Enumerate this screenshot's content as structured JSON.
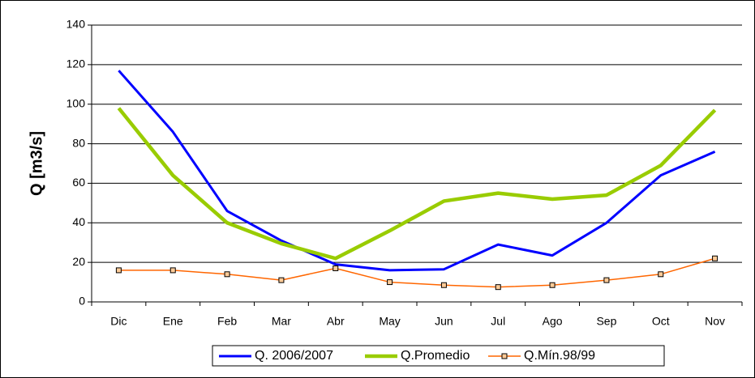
{
  "chart_data": {
    "type": "line",
    "y_label": "Q [m3/s]",
    "categories": [
      "Dic",
      "Ene",
      "Feb",
      "Mar",
      "Abr",
      "May",
      "Jun",
      "Jul",
      "Ago",
      "Sep",
      "Oct",
      "Nov"
    ],
    "series": [
      {
        "name": "Q. 2006/2007",
        "color": "#0000ff",
        "width": 3,
        "marker": false,
        "values": [
          117,
          86,
          46,
          31,
          19,
          16,
          16.5,
          29,
          23.5,
          40,
          64,
          76
        ]
      },
      {
        "name": "Q.Promedio",
        "color": "#99cc00",
        "width": 4.5,
        "marker": false,
        "values": [
          98,
          64,
          40,
          29.5,
          22,
          36,
          51,
          55,
          52,
          54,
          69,
          97
        ]
      },
      {
        "name": "Q.Mín.98/99",
        "color": "#ff6600",
        "width": 1.5,
        "marker": true,
        "values": [
          16,
          16,
          14,
          11,
          17,
          10,
          8.5,
          7.5,
          8.5,
          11,
          14,
          22
        ]
      }
    ],
    "ylim": [
      0,
      140
    ],
    "yticks": [
      0,
      20,
      40,
      60,
      80,
      100,
      120,
      140
    ],
    "grid": true
  }
}
